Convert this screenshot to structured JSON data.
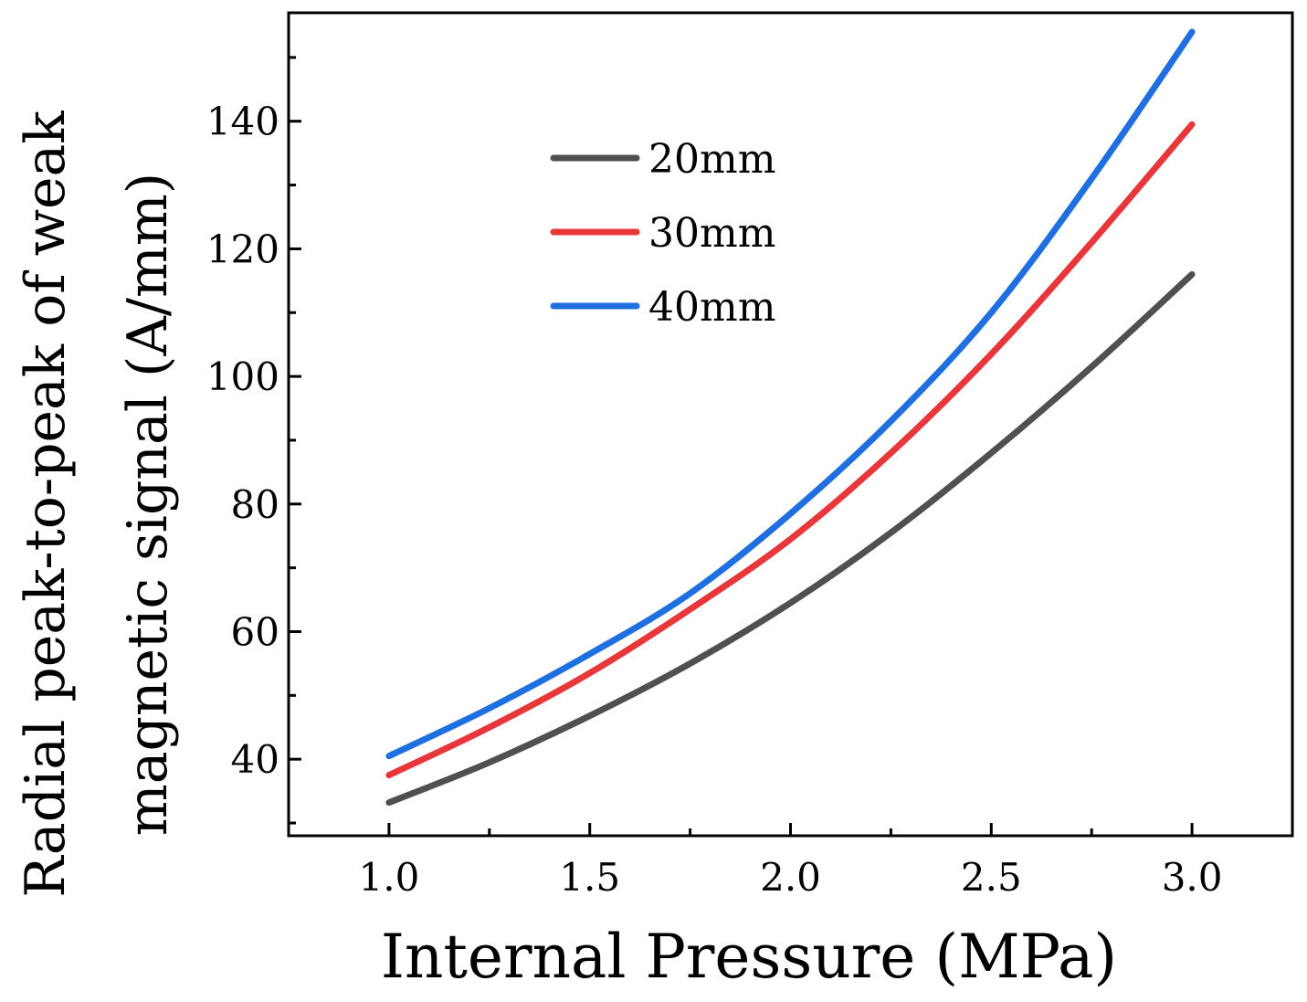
{
  "chart_data": {
    "type": "line",
    "title": "",
    "xlabel": "Internal Pressure (MPa)",
    "ylabel_line1": "Radial peak-to-peak  of weak",
    "ylabel_line2": "magnetic signal (A/mm)",
    "xlim": [
      0.75,
      3.25
    ],
    "ylim": [
      28,
      157
    ],
    "x_ticks": [
      {
        "value": 1.0,
        "label": "1.0"
      },
      {
        "value": 1.5,
        "label": "1.5"
      },
      {
        "value": 2.0,
        "label": "2.0"
      },
      {
        "value": 2.5,
        "label": "2.5"
      },
      {
        "value": 3.0,
        "label": "3.0"
      }
    ],
    "x_minor_ticks": [
      1.25,
      1.75,
      2.25,
      2.75
    ],
    "y_ticks": [
      {
        "value": 40,
        "label": "40"
      },
      {
        "value": 60,
        "label": "60"
      },
      {
        "value": 80,
        "label": "80"
      },
      {
        "value": 100,
        "label": "100"
      },
      {
        "value": 120,
        "label": "120"
      },
      {
        "value": 140,
        "label": "140"
      }
    ],
    "y_minor_ticks": [
      30,
      50,
      70,
      90,
      110,
      130,
      150
    ],
    "grid": false,
    "legend_position": "upper-left-center",
    "series": [
      {
        "name": "20mm",
        "color": "#505050",
        "x": [
          1.0,
          1.25,
          1.5,
          1.75,
          2.0,
          2.25,
          2.5,
          2.75,
          3.0
        ],
        "values": [
          33.2,
          39.5,
          46.8,
          55.0,
          64.5,
          75.5,
          88.0,
          101.5,
          116.0
        ]
      },
      {
        "name": "30mm",
        "color": "#e8373a",
        "x": [
          1.0,
          1.25,
          1.5,
          1.75,
          2.0,
          2.25,
          2.5,
          2.75,
          3.0
        ],
        "values": [
          37.5,
          45.0,
          53.5,
          63.5,
          74.5,
          88.0,
          103.5,
          121.0,
          139.5
        ]
      },
      {
        "name": "40mm",
        "color": "#1f6fe0",
        "x": [
          1.0,
          1.25,
          1.5,
          1.75,
          2.0,
          2.25,
          2.5,
          2.75,
          3.0
        ],
        "values": [
          40.5,
          48.0,
          56.5,
          66.0,
          78.5,
          93.0,
          110.0,
          131.0,
          154.0
        ]
      }
    ]
  }
}
